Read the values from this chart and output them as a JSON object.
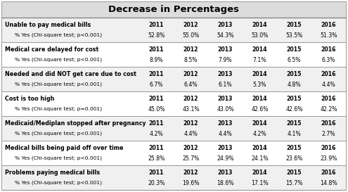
{
  "title": "Decrease in Percentages",
  "years": [
    "2011",
    "2012",
    "2013",
    "2014",
    "2015",
    "2016"
  ],
  "rows": [
    {
      "label": "Unable to pay medical bills",
      "sublabel": "% Yes (Chi-square test; p<0.001)",
      "values": [
        "52.8%",
        "55.0%",
        "54.3%",
        "53.0%",
        "53.5%",
        "51.3%"
      ],
      "bg": "#f0f0f0"
    },
    {
      "label": "Medical care delayed for cost",
      "sublabel": "% Yes (Chi-square test; p<0.001)",
      "values": [
        "8.9%",
        "8.5%",
        "7.9%",
        "7.1%",
        "6.5%",
        "6.3%"
      ],
      "bg": "#ffffff"
    },
    {
      "label": "Needed and did NOT get care due to cost",
      "sublabel": "% Yes (Chi-square test; p<0.001)",
      "values": [
        "6.7%",
        "6.4%",
        "6.1%",
        "5.3%",
        "4.8%",
        "4.4%"
      ],
      "bg": "#f0f0f0"
    },
    {
      "label": "Cost is too high",
      "sublabel": "% Yes (Chi-square test; p=0.001)",
      "values": [
        "45.0%",
        "43.1%",
        "43.0%",
        "42.6%",
        "42.6%",
        "42.2%"
      ],
      "bg": "#ffffff"
    },
    {
      "label": "Medicaid/Mediplan stopped after pregnancy",
      "sublabel": "% Yes (Chi-square test; p<0.001)",
      "values": [
        "4.2%",
        "4.4%",
        "4.4%",
        "4.2%",
        "4.1%",
        "2.7%"
      ],
      "bg": "#f0f0f0"
    },
    {
      "label": "Medical bills being paid off over time",
      "sublabel": "% Yes (Chi-square test; p<0.001)",
      "values": [
        "25.8%",
        "25.7%",
        "24.9%",
        "24.1%",
        "23.6%",
        "23.9%"
      ],
      "bg": "#ffffff"
    },
    {
      "label": "Problems paying medical bills",
      "sublabel": "% Yes (Chi-square test; p<0.001)",
      "values": [
        "20.3%",
        "19.6%",
        "18.6%",
        "17.1%",
        "15.7%",
        "14.8%"
      ],
      "bg": "#f0f0f0"
    }
  ],
  "title_bg": "#dcdcdc",
  "border_color": "#888888",
  "text_color": "#000000",
  "label_fontsize": 5.8,
  "sublabel_fontsize": 5.4,
  "value_fontsize": 5.6,
  "year_fontsize": 5.6,
  "title_fontsize": 9.5
}
